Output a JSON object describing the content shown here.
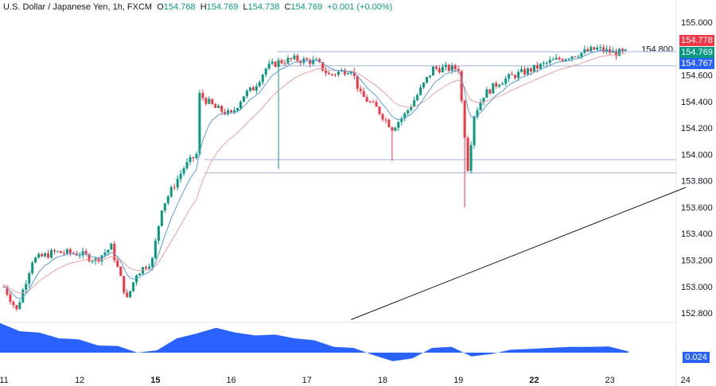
{
  "header": {
    "symbol": "U.S. Dollar / Japanese Yen, 1h, FXCM",
    "o_label": "O",
    "o": "154.768",
    "h_label": "H",
    "h": "154.769",
    "l_label": "L",
    "l": "154.738",
    "c_label": "C",
    "c": "154.769",
    "change": "+0.001 (+0.00%)"
  },
  "price_tags": {
    "high_line": "154.778",
    "last": "154.769",
    "low_line": "154.767"
  },
  "oscillator_tag": "0.024",
  "colors": {
    "up": "#089981",
    "down": "#f23645",
    "ma_fast": "#5b9bd5",
    "ma_slow": "#e8a0a0",
    "osc": "#2962ff",
    "tag_red": "#f23645",
    "tag_green": "#089981",
    "tag_blue": "#2962ff"
  },
  "chart_data": {
    "type": "candlestick",
    "yaxis": {
      "ticks": [
        "155.000",
        "154.800",
        "154.600",
        "154.400",
        "154.200",
        "154.000",
        "153.800",
        "153.600",
        "153.400",
        "153.200",
        "153.000",
        "152.800"
      ],
      "range": [
        152.78,
        155.08
      ]
    },
    "xaxis": {
      "ticks": [
        "11",
        "12",
        "15",
        "16",
        "17",
        "18",
        "19",
        "22",
        "23",
        "24"
      ]
    },
    "close_path": [
      {
        "day": "11",
        "hour": 0,
        "close": 153.0
      },
      {
        "day": "11",
        "hour": 4,
        "close": 152.82
      },
      {
        "day": "11",
        "hour": 9,
        "close": 153.2
      },
      {
        "day": "11",
        "hour": 16,
        "close": 153.26
      },
      {
        "day": "12",
        "hour": 0,
        "close": 153.25
      },
      {
        "day": "12",
        "hour": 5,
        "close": 153.2
      },
      {
        "day": "12",
        "hour": 10,
        "close": 153.3
      },
      {
        "day": "12",
        "hour": 15,
        "close": 152.9
      },
      {
        "day": "12",
        "hour": 18,
        "close": 153.1
      },
      {
        "day": "12",
        "hour": 23,
        "close": 153.2
      },
      {
        "day": "15",
        "hour": 2,
        "close": 153.6
      },
      {
        "day": "15",
        "hour": 9,
        "close": 153.9
      },
      {
        "day": "15",
        "hour": 13,
        "close": 154.0
      },
      {
        "day": "15",
        "hour": 14,
        "close": 154.45
      },
      {
        "day": "15",
        "hour": 19,
        "close": 154.35
      },
      {
        "day": "16",
        "hour": 0,
        "close": 154.3
      },
      {
        "day": "16",
        "hour": 4,
        "close": 154.45
      },
      {
        "day": "16",
        "hour": 7,
        "close": 154.5
      },
      {
        "day": "16",
        "hour": 11,
        "close": 154.65
      },
      {
        "day": "16",
        "hour": 15,
        "close": 154.7
      },
      {
        "day": "16",
        "hour": 20,
        "close": 154.72
      },
      {
        "day": "17",
        "hour": 3,
        "close": 154.7
      },
      {
        "day": "17",
        "hour": 7,
        "close": 154.6
      },
      {
        "day": "17",
        "hour": 14,
        "close": 154.65
      },
      {
        "day": "17",
        "hour": 17,
        "close": 154.45
      },
      {
        "day": "17",
        "hour": 22,
        "close": 154.35
      },
      {
        "day": "18",
        "hour": 3,
        "close": 154.2
      },
      {
        "day": "18",
        "hour": 7,
        "close": 154.3
      },
      {
        "day": "18",
        "hour": 11,
        "close": 154.45
      },
      {
        "day": "18",
        "hour": 16,
        "close": 154.65
      },
      {
        "day": "19",
        "hour": 0,
        "close": 154.65
      },
      {
        "day": "19",
        "hour": 3,
        "close": 153.9
      },
      {
        "day": "19",
        "hour": 5,
        "close": 154.3
      },
      {
        "day": "19",
        "hour": 8,
        "close": 154.45
      },
      {
        "day": "19",
        "hour": 13,
        "close": 154.55
      },
      {
        "day": "19",
        "hour": 18,
        "close": 154.6
      },
      {
        "day": "22",
        "hour": 0,
        "close": 154.65
      },
      {
        "day": "22",
        "hour": 5,
        "close": 154.7
      },
      {
        "day": "22",
        "hour": 12,
        "close": 154.75
      },
      {
        "day": "22",
        "hour": 20,
        "close": 154.8
      },
      {
        "day": "23",
        "hour": 1,
        "close": 154.77
      },
      {
        "day": "23",
        "hour": 6,
        "close": 154.769
      }
    ],
    "wick_lows": [
      {
        "day": "16",
        "hour": 15,
        "low": 153.89
      },
      {
        "day": "18",
        "hour": 3,
        "low": 153.95
      },
      {
        "day": "19",
        "hour": 2,
        "low": 153.6
      }
    ],
    "horizontal_levels": [
      154.778,
      154.67,
      153.96,
      153.86
    ],
    "trendline": [
      {
        "day": "17",
        "hour": 14,
        "price": 152.75
      },
      {
        "day": "24",
        "hour": 0,
        "price": 153.75
      }
    ],
    "oscillator": {
      "values": [
        0.62,
        0.45,
        0.42,
        0.3,
        0.28,
        0.15,
        0.14,
        0.0,
        0.05,
        0.3,
        0.4,
        0.52,
        0.42,
        0.36,
        0.38,
        0.3,
        0.26,
        0.12,
        0.1,
        -0.05,
        -0.18,
        -0.12,
        0.1,
        0.12,
        -0.08,
        -0.03,
        0.06,
        0.08,
        0.1,
        0.12,
        0.12,
        0.13,
        0.024
      ]
    }
  }
}
